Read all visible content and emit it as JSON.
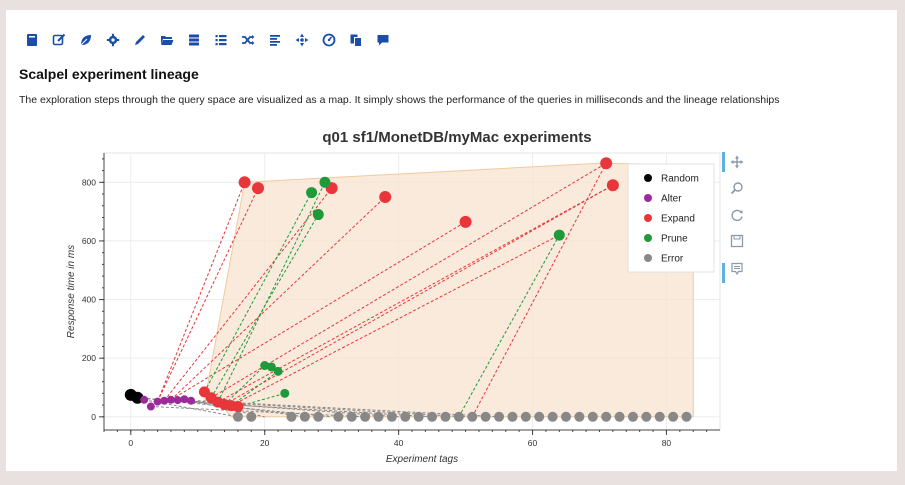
{
  "toolbar": {
    "icons": [
      "book-icon",
      "edit-icon",
      "leaf-icon",
      "gear-icon",
      "pencil-icon",
      "folder-open-icon",
      "server-icon",
      "list-icon",
      "shuffle-icon",
      "align-left-icon",
      "crosshair-icon",
      "dashboard-icon",
      "copy-icon",
      "comment-icon"
    ],
    "color": "#1a4ea8"
  },
  "page": {
    "title": "Scalpel experiment lineage",
    "description": "The exploration steps through the query space are visualized as a map. It simply shows the performance of the queries in milliseconds and the lineage relationships"
  },
  "plot_tools": [
    "pan-tool-icon",
    "zoom-tool-icon",
    "reset-tool-icon",
    "save-tool-icon",
    "hover-tool-icon"
  ],
  "chart_data": {
    "type": "scatter",
    "title": "q01 sf1/MonetDB/myMac experiments",
    "xlabel": "Experiment tags",
    "ylabel": "Response time in ms",
    "xlim": [
      -4,
      88
    ],
    "ylim": [
      -45,
      900
    ],
    "xticks": [
      0,
      20,
      40,
      60,
      80
    ],
    "yticks": [
      0,
      200,
      400,
      600,
      800
    ],
    "grid": true,
    "legend_position": "top-right",
    "hull": [
      [
        11,
        50
      ],
      [
        17,
        800
      ],
      [
        70,
        865
      ],
      [
        84,
        860
      ],
      [
        84,
        0
      ],
      [
        15,
        0
      ],
      [
        12,
        80
      ]
    ],
    "series": [
      {
        "name": "Random",
        "color": "#000000",
        "points": [
          [
            0,
            75
          ],
          [
            1,
            65
          ]
        ]
      },
      {
        "name": "Alter",
        "color": "#9b2a9b",
        "points": [
          [
            2,
            58
          ],
          [
            3,
            35
          ],
          [
            4,
            52
          ],
          [
            5,
            55
          ],
          [
            6,
            58
          ],
          [
            7,
            57
          ],
          [
            8,
            60
          ],
          [
            9,
            55
          ]
        ]
      },
      {
        "name": "Expand",
        "color": "#e8363a",
        "points": [
          [
            11,
            85
          ],
          [
            12,
            65
          ],
          [
            13,
            50
          ],
          [
            14,
            42
          ],
          [
            15,
            38
          ],
          [
            16,
            35
          ],
          [
            17,
            800
          ],
          [
            19,
            780
          ],
          [
            30,
            780
          ],
          [
            38,
            750
          ],
          [
            50,
            665
          ],
          [
            71,
            865
          ],
          [
            72,
            790
          ]
        ]
      },
      {
        "name": "Prune",
        "color": "#1f9a3a",
        "points": [
          [
            20,
            175
          ],
          [
            21,
            170
          ],
          [
            22,
            155
          ],
          [
            23,
            80
          ],
          [
            27,
            765
          ],
          [
            28,
            690
          ],
          [
            29,
            800
          ],
          [
            64,
            620
          ]
        ]
      },
      {
        "name": "Error",
        "color": "#888888",
        "points": [
          [
            16,
            0
          ],
          [
            18,
            0
          ],
          [
            24,
            0
          ],
          [
            26,
            0
          ],
          [
            28,
            0
          ],
          [
            31,
            0
          ],
          [
            33,
            0
          ],
          [
            35,
            0
          ],
          [
            37,
            0
          ],
          [
            39,
            0
          ],
          [
            41,
            0
          ],
          [
            43,
            0
          ],
          [
            45,
            0
          ],
          [
            47,
            0
          ],
          [
            49,
            0
          ],
          [
            51,
            0
          ],
          [
            53,
            0
          ],
          [
            55,
            0
          ],
          [
            57,
            0
          ],
          [
            59,
            0
          ],
          [
            61,
            0
          ],
          [
            63,
            0
          ],
          [
            65,
            0
          ],
          [
            67,
            0
          ],
          [
            69,
            0
          ],
          [
            71,
            0
          ],
          [
            73,
            0
          ],
          [
            75,
            0
          ],
          [
            77,
            0
          ],
          [
            79,
            0
          ],
          [
            81,
            0
          ],
          [
            83,
            0
          ]
        ]
      }
    ],
    "lineage": [
      {
        "from": [
          4,
          52
        ],
        "to": [
          17,
          800
        ],
        "color": "#e8363a"
      },
      {
        "from": [
          4,
          52
        ],
        "to": [
          19,
          780
        ],
        "color": "#e8363a"
      },
      {
        "from": [
          5,
          55
        ],
        "to": [
          30,
          780
        ],
        "color": "#e8363a"
      },
      {
        "from": [
          6,
          58
        ],
        "to": [
          38,
          750
        ],
        "color": "#e8363a"
      },
      {
        "from": [
          6,
          58
        ],
        "to": [
          50,
          665
        ],
        "color": "#e8363a"
      },
      {
        "from": [
          12,
          65
        ],
        "to": [
          71,
          865
        ],
        "color": "#e8363a"
      },
      {
        "from": [
          13,
          50
        ],
        "to": [
          72,
          790
        ],
        "color": "#e8363a"
      },
      {
        "from": [
          14,
          42
        ],
        "to": [
          72,
          790
        ],
        "color": "#e8363a"
      },
      {
        "from": [
          15,
          38
        ],
        "to": [
          64,
          620
        ],
        "color": "#e8363a"
      },
      {
        "from": [
          11,
          85
        ],
        "to": [
          27,
          765
        ],
        "color": "#1f9a3a"
      },
      {
        "from": [
          12,
          65
        ],
        "to": [
          28,
          690
        ],
        "color": "#1f9a3a"
      },
      {
        "from": [
          13,
          50
        ],
        "to": [
          29,
          800
        ],
        "color": "#1f9a3a"
      },
      {
        "from": [
          14,
          42
        ],
        "to": [
          20,
          175
        ],
        "color": "#1f9a3a"
      },
      {
        "from": [
          15,
          38
        ],
        "to": [
          22,
          155
        ],
        "color": "#1f9a3a"
      },
      {
        "from": [
          16,
          35
        ],
        "to": [
          23,
          80
        ],
        "color": "#1f9a3a"
      },
      {
        "from": [
          49,
          0
        ],
        "to": [
          64,
          620
        ],
        "color": "#1f9a3a"
      },
      {
        "from": [
          51,
          0
        ],
        "to": [
          71,
          865
        ],
        "color": "#e8363a"
      },
      {
        "from": [
          1,
          65
        ],
        "to": [
          30,
          0
        ],
        "color": "#888888"
      },
      {
        "from": [
          1,
          65
        ],
        "to": [
          40,
          0
        ],
        "color": "#888888"
      },
      {
        "from": [
          3,
          35
        ],
        "to": [
          35,
          0
        ],
        "color": "#888888"
      },
      {
        "from": [
          5,
          55
        ],
        "to": [
          45,
          0
        ],
        "color": "#888888"
      },
      {
        "from": [
          7,
          57
        ],
        "to": [
          50,
          0
        ],
        "color": "#888888"
      },
      {
        "from": [
          8,
          60
        ],
        "to": [
          20,
          0
        ],
        "color": "#888888"
      },
      {
        "from": [
          9,
          55
        ],
        "to": [
          26,
          0
        ],
        "color": "#888888"
      },
      {
        "from": [
          10,
          55
        ],
        "to": [
          55,
          0
        ],
        "color": "#888888"
      },
      {
        "from": [
          2,
          58
        ],
        "to": [
          16,
          0
        ],
        "color": "#888888"
      }
    ]
  }
}
